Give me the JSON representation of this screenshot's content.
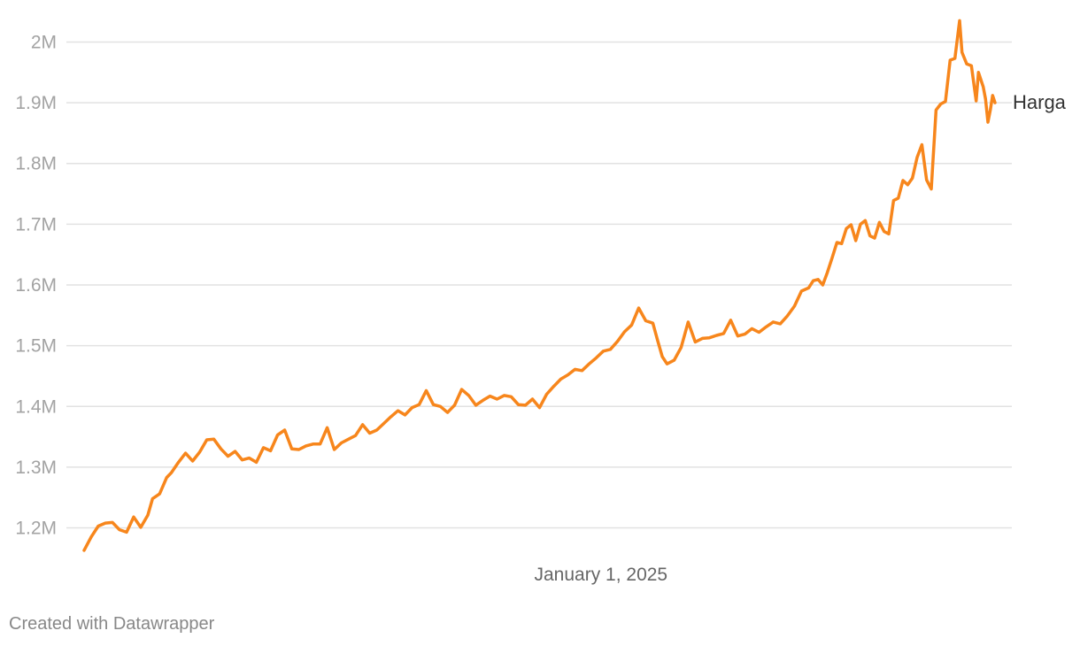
{
  "chart_data": {
    "type": "line",
    "title": "",
    "xlabel": "",
    "ylabel": "",
    "x_range": [
      "2024-05-27",
      "2025-06-17"
    ],
    "ylim": [
      1160000,
      2040000
    ],
    "y_ticks": [
      {
        "value": 1200000,
        "label": "1.2M"
      },
      {
        "value": 1300000,
        "label": "1.3M"
      },
      {
        "value": 1400000,
        "label": "1.4M"
      },
      {
        "value": 1500000,
        "label": "1.5M"
      },
      {
        "value": 1600000,
        "label": "1.6M"
      },
      {
        "value": 1700000,
        "label": "1.7M"
      },
      {
        "value": 1800000,
        "label": "1.8M"
      },
      {
        "value": 1900000,
        "label": "1.9M"
      },
      {
        "value": 2000000,
        "label": "2M"
      }
    ],
    "x_ticks": [
      {
        "value": "2025-01-01",
        "label": "January 1, 2025"
      }
    ],
    "grid": "horizontal",
    "legend": "end-of-line label",
    "series": [
      {
        "name": "Harga",
        "color": "#f7861c",
        "points": [
          [
            "2024-05-27",
            1163000
          ],
          [
            "2024-05-30",
            1185000
          ],
          [
            "2024-06-02",
            1203000
          ],
          [
            "2024-06-05",
            1208000
          ],
          [
            "2024-06-08",
            1209000
          ],
          [
            "2024-06-11",
            1197000
          ],
          [
            "2024-06-14",
            1193000
          ],
          [
            "2024-06-17",
            1218000
          ],
          [
            "2024-06-20",
            1201000
          ],
          [
            "2024-06-23",
            1221000
          ],
          [
            "2024-06-25",
            1248000
          ],
          [
            "2024-06-28",
            1256000
          ],
          [
            "2024-07-01",
            1283000
          ],
          [
            "2024-07-03",
            1291000
          ],
          [
            "2024-07-06",
            1308000
          ],
          [
            "2024-07-09",
            1323000
          ],
          [
            "2024-07-12",
            1310000
          ],
          [
            "2024-07-15",
            1325000
          ],
          [
            "2024-07-18",
            1345000
          ],
          [
            "2024-07-21",
            1346000
          ],
          [
            "2024-07-24",
            1330000
          ],
          [
            "2024-07-27",
            1318000
          ],
          [
            "2024-07-30",
            1326000
          ],
          [
            "2024-08-02",
            1312000
          ],
          [
            "2024-08-05",
            1315000
          ],
          [
            "2024-08-08",
            1308000
          ],
          [
            "2024-08-11",
            1332000
          ],
          [
            "2024-08-14",
            1327000
          ],
          [
            "2024-08-17",
            1353000
          ],
          [
            "2024-08-20",
            1361000
          ],
          [
            "2024-08-23",
            1330000
          ],
          [
            "2024-08-26",
            1329000
          ],
          [
            "2024-08-29",
            1335000
          ],
          [
            "2024-09-01",
            1338000
          ],
          [
            "2024-09-04",
            1338000
          ],
          [
            "2024-09-07",
            1365000
          ],
          [
            "2024-09-10",
            1329000
          ],
          [
            "2024-09-13",
            1340000
          ],
          [
            "2024-09-16",
            1346000
          ],
          [
            "2024-09-19",
            1352000
          ],
          [
            "2024-09-22",
            1370000
          ],
          [
            "2024-09-25",
            1356000
          ],
          [
            "2024-09-28",
            1361000
          ],
          [
            "2024-10-01",
            1372000
          ],
          [
            "2024-10-04",
            1383000
          ],
          [
            "2024-10-07",
            1393000
          ],
          [
            "2024-10-10",
            1386000
          ],
          [
            "2024-10-13",
            1398000
          ],
          [
            "2024-10-16",
            1403000
          ],
          [
            "2024-10-19",
            1426000
          ],
          [
            "2024-10-22",
            1403000
          ],
          [
            "2024-10-25",
            1400000
          ],
          [
            "2024-10-28",
            1390000
          ],
          [
            "2024-10-31",
            1402000
          ],
          [
            "2024-11-03",
            1428000
          ],
          [
            "2024-11-06",
            1418000
          ],
          [
            "2024-11-09",
            1402000
          ],
          [
            "2024-11-12",
            1410000
          ],
          [
            "2024-11-15",
            1417000
          ],
          [
            "2024-11-18",
            1412000
          ],
          [
            "2024-11-21",
            1418000
          ],
          [
            "2024-11-24",
            1416000
          ],
          [
            "2024-11-27",
            1403000
          ],
          [
            "2024-11-30",
            1402000
          ],
          [
            "2024-12-03",
            1412000
          ],
          [
            "2024-12-06",
            1398000
          ],
          [
            "2024-12-09",
            1420000
          ],
          [
            "2024-12-12",
            1433000
          ],
          [
            "2024-12-15",
            1445000
          ],
          [
            "2024-12-18",
            1452000
          ],
          [
            "2024-12-21",
            1461000
          ],
          [
            "2024-12-24",
            1459000
          ],
          [
            "2024-12-27",
            1470000
          ],
          [
            "2024-12-30",
            1480000
          ],
          [
            "2025-01-02",
            1491000
          ],
          [
            "2025-01-05",
            1494000
          ],
          [
            "2025-01-08",
            1507000
          ],
          [
            "2025-01-11",
            1523000
          ],
          [
            "2025-01-14",
            1534000
          ],
          [
            "2025-01-17",
            1562000
          ],
          [
            "2025-01-20",
            1541000
          ],
          [
            "2025-01-23",
            1537000
          ],
          [
            "2025-01-25",
            1509000
          ],
          [
            "2025-01-27",
            1482000
          ],
          [
            "2025-01-29",
            1470000
          ],
          [
            "2025-02-01",
            1476000
          ],
          [
            "2025-02-04",
            1497000
          ],
          [
            "2025-02-07",
            1539000
          ],
          [
            "2025-02-10",
            1506000
          ],
          [
            "2025-02-13",
            1512000
          ],
          [
            "2025-02-16",
            1513000
          ],
          [
            "2025-02-19",
            1517000
          ],
          [
            "2025-02-22",
            1520000
          ],
          [
            "2025-02-25",
            1542000
          ],
          [
            "2025-02-28",
            1516000
          ],
          [
            "2025-03-03",
            1519000
          ],
          [
            "2025-03-06",
            1528000
          ],
          [
            "2025-03-09",
            1522000
          ],
          [
            "2025-03-12",
            1531000
          ],
          [
            "2025-03-15",
            1539000
          ],
          [
            "2025-03-18",
            1536000
          ],
          [
            "2025-03-21",
            1549000
          ],
          [
            "2025-03-24",
            1565000
          ],
          [
            "2025-03-27",
            1590000
          ],
          [
            "2025-03-30",
            1595000
          ],
          [
            "2025-04-01",
            1607000
          ],
          [
            "2025-04-03",
            1609000
          ],
          [
            "2025-04-05",
            1600000
          ],
          [
            "2025-04-07",
            1621000
          ],
          [
            "2025-04-09",
            1645000
          ],
          [
            "2025-04-11",
            1670000
          ],
          [
            "2025-04-13",
            1668000
          ],
          [
            "2025-04-15",
            1693000
          ],
          [
            "2025-04-17",
            1699000
          ],
          [
            "2025-04-19",
            1673000
          ],
          [
            "2025-04-21",
            1700000
          ],
          [
            "2025-04-23",
            1706000
          ],
          [
            "2025-04-25",
            1681000
          ],
          [
            "2025-04-27",
            1677000
          ],
          [
            "2025-04-29",
            1703000
          ],
          [
            "2025-05-01",
            1688000
          ],
          [
            "2025-05-03",
            1684000
          ],
          [
            "2025-05-05",
            1739000
          ],
          [
            "2025-05-07",
            1743000
          ],
          [
            "2025-05-09",
            1772000
          ],
          [
            "2025-05-11",
            1765000
          ],
          [
            "2025-05-13",
            1776000
          ],
          [
            "2025-05-15",
            1810000
          ],
          [
            "2025-05-17",
            1831000
          ],
          [
            "2025-05-19",
            1773000
          ],
          [
            "2025-05-21",
            1758000
          ],
          [
            "2025-05-23",
            1888000
          ],
          [
            "2025-05-25",
            1898000
          ],
          [
            "2025-05-27",
            1902000
          ],
          [
            "2025-05-29",
            1970000
          ],
          [
            "2025-05-31",
            1973000
          ],
          [
            "2025-06-02",
            2035000
          ],
          [
            "2025-06-03",
            1983000
          ],
          [
            "2025-06-05",
            1964000
          ],
          [
            "2025-06-07",
            1961000
          ],
          [
            "2025-06-09",
            1903000
          ],
          [
            "2025-06-10",
            1950000
          ],
          [
            "2025-06-12",
            1926000
          ],
          [
            "2025-06-13",
            1906000
          ],
          [
            "2025-06-14",
            1868000
          ],
          [
            "2025-06-15",
            1888000
          ],
          [
            "2025-06-16",
            1912000
          ],
          [
            "2025-06-17",
            1900000
          ]
        ]
      }
    ],
    "footer": "Created with Datawrapper"
  }
}
